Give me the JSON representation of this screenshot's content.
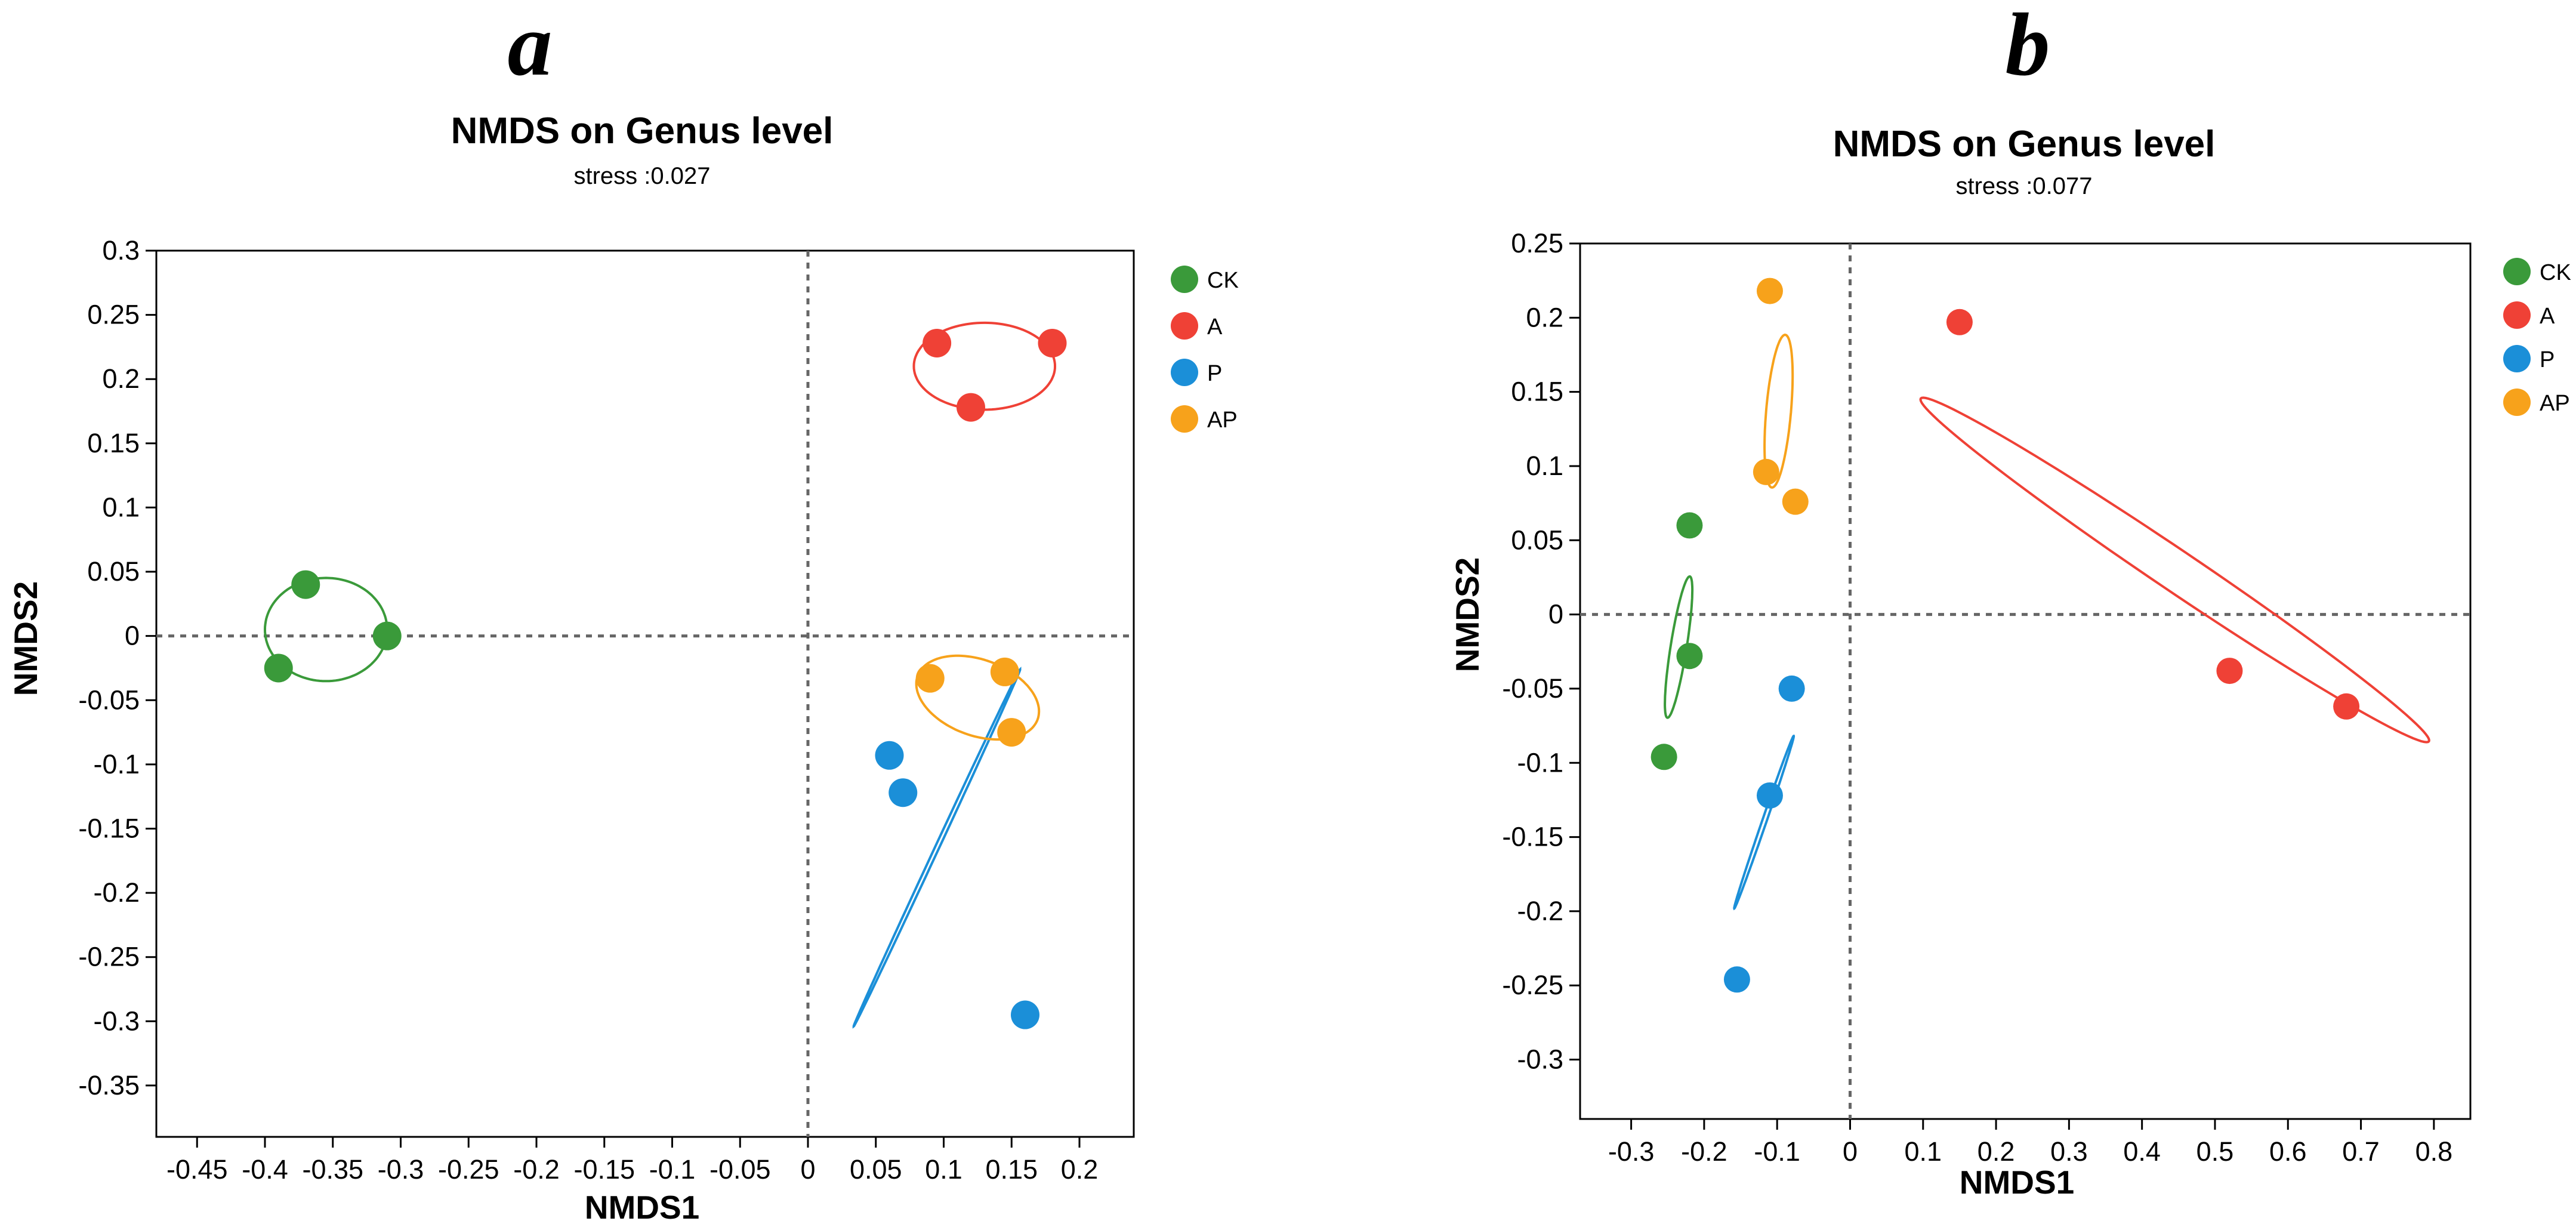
{
  "chart_data": [
    {
      "type": "scatter",
      "panel": "a",
      "title": "NMDS on Genus level",
      "subtitle": "stress :0.027",
      "xlabel": "NMDS1",
      "ylabel": "NMDS2",
      "xlim": [
        -0.48,
        0.24
      ],
      "ylim": [
        -0.39,
        0.3
      ],
      "xticks": [
        -0.45,
        -0.4,
        -0.35,
        -0.3,
        -0.25,
        -0.2,
        -0.15,
        -0.1,
        -0.05,
        0,
        0.05,
        0.1,
        0.15,
        0.2
      ],
      "xtick_labels": [
        "-0.45",
        "-0.4",
        "-0.35",
        "-0.3",
        "-0.25",
        "-0.2",
        "-0.15",
        "-0.1",
        "-0.05",
        "0",
        "0.05",
        "0.1",
        "0.15",
        "0.2"
      ],
      "yticks": [
        0.3,
        0.25,
        0.2,
        0.15,
        0.1,
        0.05,
        0,
        -0.05,
        -0.1,
        -0.15,
        -0.2,
        -0.25,
        -0.3,
        -0.35
      ],
      "ytick_labels": [
        "0.3",
        "0.25",
        "0.2",
        "0.15",
        "0.1",
        "0.05",
        "0",
        "-0.05",
        "-0.1",
        "-0.15",
        "-0.2",
        "-0.25",
        "-0.3",
        "-0.35"
      ],
      "reference_lines": {
        "x": 0,
        "y": 0
      },
      "legend_position": "right",
      "series": [
        {
          "name": "CK",
          "color": "#3a9a3a",
          "x": [
            -0.37,
            -0.39,
            -0.31
          ],
          "y": [
            0.04,
            -0.025,
            0.0
          ],
          "ellipse": {
            "cx": -0.355,
            "cy": 0.005,
            "rx": 0.045,
            "ry": 0.038,
            "angle": 0
          }
        },
        {
          "name": "A",
          "color": "#ef4136",
          "x": [
            0.095,
            0.12,
            0.18
          ],
          "y": [
            0.228,
            0.178,
            0.228
          ],
          "ellipse": {
            "cx": 0.13,
            "cy": 0.21,
            "rx": 0.052,
            "ry": 0.032,
            "angle": 0
          }
        },
        {
          "name": "P",
          "color": "#1b8fd8",
          "x": [
            0.06,
            0.07,
            0.16
          ],
          "y": [
            -0.093,
            -0.122,
            -0.295
          ],
          "ellipse": {
            "cx": 0.095,
            "cy": -0.165,
            "rx": 0.145,
            "ry": 0.0015,
            "angle": 115
          }
        },
        {
          "name": "AP",
          "color": "#f7a21b",
          "x": [
            0.09,
            0.145,
            0.15
          ],
          "y": [
            -0.033,
            -0.028,
            -0.075
          ],
          "ellipse": {
            "cx": 0.125,
            "cy": -0.048,
            "rx": 0.047,
            "ry": 0.028,
            "angle": 20
          }
        }
      ]
    },
    {
      "type": "scatter",
      "panel": "b",
      "title": "NMDS on Genus level",
      "subtitle": "stress :0.077",
      "xlabel": "NMDS1",
      "ylabel": "NMDS2",
      "xlim": [
        -0.37,
        0.85
      ],
      "ylim": [
        -0.34,
        0.25
      ],
      "xticks": [
        -0.3,
        -0.2,
        -0.1,
        0,
        0.1,
        0.2,
        0.3,
        0.4,
        0.5,
        0.6,
        0.7,
        0.8
      ],
      "xtick_labels": [
        "-0.3",
        "-0.2",
        "-0.1",
        "0",
        "0.1",
        "0.2",
        "0.3",
        "0.4",
        "0.5",
        "0.6",
        "0.7",
        "0.8"
      ],
      "yticks": [
        0.25,
        0.2,
        0.15,
        0.1,
        0.05,
        0,
        -0.05,
        -0.1,
        -0.15,
        -0.2,
        -0.25,
        -0.3
      ],
      "ytick_labels": [
        "0.25",
        "0.2",
        "0.15",
        "0.1",
        "0.05",
        "0",
        "-0.05",
        "-0.1",
        "-0.15",
        "-0.2",
        "-0.25",
        "-0.3"
      ],
      "reference_lines": {
        "x": 0,
        "y": 0
      },
      "legend_position": "right",
      "series": [
        {
          "name": "CK",
          "color": "#3a9a3a",
          "x": [
            -0.22,
            -0.22,
            -0.255
          ],
          "y": [
            0.06,
            -0.028,
            -0.096
          ],
          "ellipse": {
            "cx": -0.235,
            "cy": -0.022,
            "rx": 0.098,
            "ry": 0.011,
            "angle": -81
          }
        },
        {
          "name": "A",
          "color": "#ef4136",
          "x": [
            0.15,
            0.52,
            0.68
          ],
          "y": [
            0.197,
            -0.038,
            -0.062
          ],
          "ellipse": {
            "cx": 0.445,
            "cy": 0.03,
            "rx": 0.42,
            "ry": 0.028,
            "angle": 34
          }
        },
        {
          "name": "P",
          "color": "#1b8fd8",
          "x": [
            -0.08,
            -0.11,
            -0.155
          ],
          "y": [
            -0.05,
            -0.122,
            -0.246
          ],
          "ellipse": {
            "cx": -0.118,
            "cy": -0.14,
            "rx": 0.125,
            "ry": 0.003,
            "angle": -71
          }
        },
        {
          "name": "AP",
          "color": "#f7a21b",
          "x": [
            -0.11,
            -0.115,
            -0.075
          ],
          "y": [
            0.218,
            0.096,
            0.076
          ],
          "ellipse": {
            "cx": -0.098,
            "cy": 0.137,
            "rx": 0.105,
            "ry": 0.017,
            "angle": -85
          }
        }
      ]
    }
  ]
}
